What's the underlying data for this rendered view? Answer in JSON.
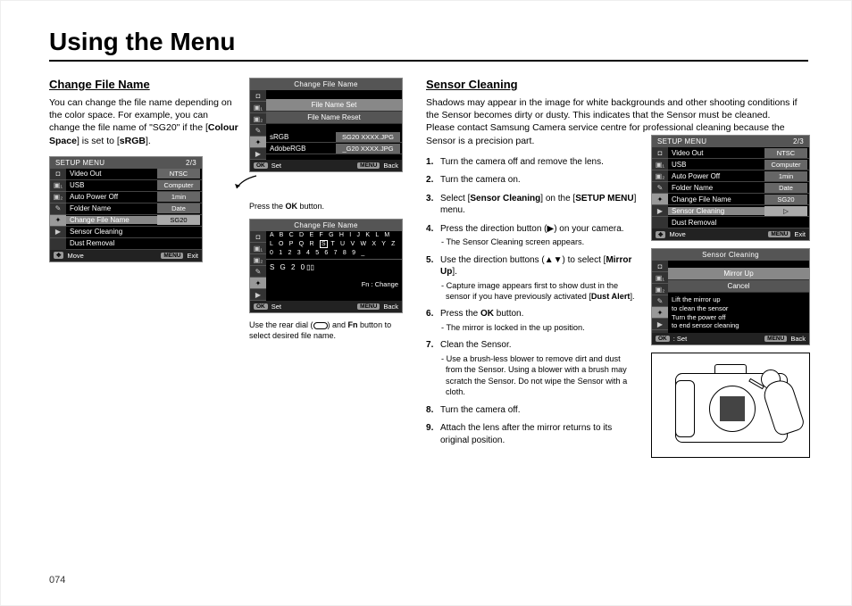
{
  "page_title": "Using the Menu",
  "page_number": "074",
  "left": {
    "heading": "Change File Name",
    "intro_pre": "You can change the file name depending on the color space.\nFor example, you can change the file name of \"SG20\" if the [",
    "intro_bold1": "Colour Space",
    "intro_mid": "] is set to [",
    "intro_bold2": "sRGB",
    "intro_post": "].",
    "setup_menu": {
      "title": "SETUP MENU",
      "page": "2/3",
      "rows": [
        {
          "k": "Video Out",
          "v": "NTSC",
          "sel": false
        },
        {
          "k": "USB",
          "v": "Computer",
          "sel": false
        },
        {
          "k": "Auto Power Off",
          "v": "1min",
          "sel": false
        },
        {
          "k": "Folder Name",
          "v": "Date",
          "sel": false
        },
        {
          "k": "Change File Name",
          "v": "SG20",
          "sel": true
        },
        {
          "k": "Sensor Cleaning",
          "v": "",
          "sel": false
        },
        {
          "k": "Dust Removal",
          "v": "",
          "sel": false
        }
      ],
      "foot_move": "Move",
      "foot_exit": "Exit",
      "foot_menu": "MENU"
    },
    "cfn_menu": {
      "title": "Change File Name",
      "items": [
        {
          "label": "File Name Set",
          "sel": true
        },
        {
          "label": "File Name Reset",
          "sel": false
        }
      ],
      "examples": [
        {
          "k": "sRGB",
          "v": "SG20 XXXX.JPG"
        },
        {
          "k": "AdobeRGB",
          "v": "_G20 XXXX.JPG"
        }
      ],
      "foot_set": "Set",
      "foot_back": "Back",
      "foot_ok": "OK",
      "foot_menu": "MENU"
    },
    "caption1_pre": "Press the ",
    "caption1_bold": "OK",
    "caption1_post": " button.",
    "char_menu": {
      "title": "Change File Name",
      "row1": "A B C D E F G H I J K L M",
      "row2_pre": "L O P Q R ",
      "row2_box": "S",
      "row2_post": " T U V W X Y Z",
      "row3": "0 1 2 3 4 5 6 7 8 9 _",
      "entry": "S  G  2  0",
      "change_hint": ": Change",
      "fn_chip": "Fn",
      "foot_set": "Set",
      "foot_back": "Back",
      "foot_ok": "OK",
      "foot_menu": "MENU"
    },
    "caption2_pre": "Use the rear dial (",
    "caption2_mid": ") and ",
    "caption2_bold": "Fn",
    "caption2_post": " button to select desired file name."
  },
  "right": {
    "heading": "Sensor Cleaning",
    "intro": "Shadows may appear in the image for white backgrounds and other shooting conditions if the Sensor becomes dirty or dusty. This indicates that the Sensor must be cleaned. Please contact Samsung Camera service centre for professional cleaning because the Sensor is a precision part.",
    "steps": [
      {
        "t": "Turn the camera off and remove the lens."
      },
      {
        "t": "Turn the camera on."
      },
      {
        "pre": "Select [",
        "b1": "Sensor Cleaning",
        "mid": "] on the [",
        "b2": "SETUP MENU",
        "post": "] menu."
      },
      {
        "t": "Press the direction button (▶) on your camera.",
        "sub": "- The Sensor Cleaning screen appears."
      },
      {
        "pre": "Use the direction buttons (▲▼) to select [",
        "b1": "Mirror Up",
        "post": "].",
        "sub_pre": "- Capture image appears first to show dust in the sensor if you have previously activated [",
        "sub_b": "Dust Alert",
        "sub_post": "]."
      },
      {
        "pre": "Press the ",
        "b1": "OK",
        "post": " button.",
        "sub": "- The mirror is locked in the up position."
      },
      {
        "t": "Clean the Sensor.",
        "sub": "- Use a brush-less blower to remove dirt and dust from the Sensor. Using a blower with a brush may scratch the Sensor. Do not wipe the Sensor with a cloth."
      },
      {
        "t": "Turn the camera off."
      },
      {
        "t": "Attach the lens after the mirror returns to its original position."
      }
    ],
    "setup_menu": {
      "title": "SETUP MENU",
      "page": "2/3",
      "rows": [
        {
          "k": "Video Out",
          "v": "NTSC",
          "sel": false
        },
        {
          "k": "USB",
          "v": "Computer",
          "sel": false
        },
        {
          "k": "Auto Power Off",
          "v": "1min",
          "sel": false
        },
        {
          "k": "Folder Name",
          "v": "Date",
          "sel": false
        },
        {
          "k": "Change File Name",
          "v": "SG20",
          "sel": false
        },
        {
          "k": "Sensor Cleaning",
          "v": "▷",
          "sel": true
        },
        {
          "k": "Dust Removal",
          "v": "",
          "sel": false
        }
      ],
      "foot_move": "Move",
      "foot_exit": "Exit",
      "foot_menu": "MENU"
    },
    "sc_menu": {
      "title": "Sensor Cleaning",
      "items": [
        {
          "label": "Mirror Up",
          "sel": true
        },
        {
          "label": "Cancel",
          "sel": false
        }
      ],
      "hint1": "Lift the mirror up",
      "hint2": "to clean the sensor",
      "hint3": "Turn the power off",
      "hint4": "to end sensor cleaning",
      "foot_set": ": Set",
      "foot_back": "Back",
      "foot_ok": "OK",
      "foot_menu": "MENU"
    }
  }
}
